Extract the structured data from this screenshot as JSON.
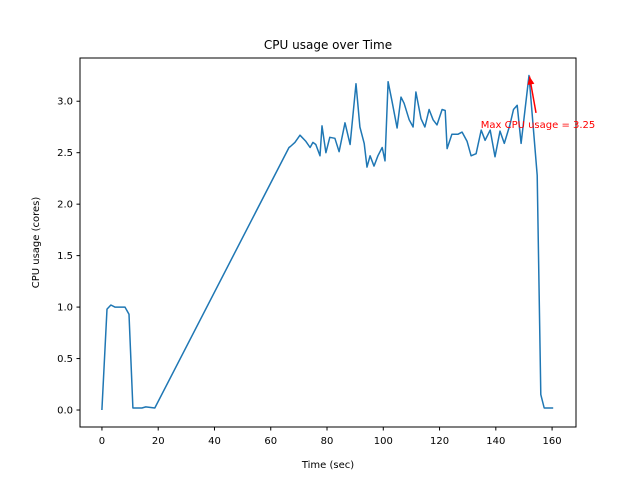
{
  "chart_data": {
    "type": "line",
    "title": "CPU usage over Time",
    "xlabel": "Time (sec)",
    "ylabel": "CPU usage (cores)",
    "xlim": [
      -7.8,
      168.5
    ],
    "ylim": [
      -0.165,
      3.42
    ],
    "xticks": [
      0,
      20,
      40,
      60,
      80,
      100,
      120,
      140,
      160
    ],
    "yticks": [
      0.0,
      0.5,
      1.0,
      1.5,
      2.0,
      2.5,
      3.0
    ],
    "ytick_labels": [
      "0.0",
      "0.5",
      "1.0",
      "1.5",
      "2.0",
      "2.5",
      "3.0"
    ],
    "grid": false,
    "line_color": "#1f77b4",
    "series": [
      {
        "name": "CPU usage",
        "x": [
          0,
          1.8,
          3.2,
          4.6,
          8.2,
          9.6,
          11,
          14.2,
          15.6,
          18.8,
          66.5,
          67,
          68.6,
          70.4,
          72.5,
          74,
          75,
          76,
          77.5,
          78.2,
          79.6,
          81,
          82.8,
          84.3,
          86.4,
          88.2,
          90.3,
          91.7,
          93.2,
          94.2,
          95.3,
          96.7,
          98.1,
          99.6,
          100.6,
          101.7,
          103.1,
          104.9,
          106.3,
          107.4,
          109.2,
          110.6,
          111.6,
          113.4,
          114.8,
          116.3,
          117.7,
          119.1,
          120.9,
          122,
          122.7,
          124.4,
          126.6,
          128,
          129.8,
          131.2,
          133,
          134.8,
          136.2,
          138,
          139.7,
          141.5,
          143,
          145,
          146.3,
          147.6,
          149,
          151.8,
          154.7,
          156,
          157.2,
          160.4
        ],
        "y": [
          0,
          0.98,
          1.02,
          1.0,
          1.0,
          0.93,
          0.02,
          0.02,
          0.03,
          0.02,
          2.55,
          2.56,
          2.6,
          2.67,
          2.61,
          2.55,
          2.6,
          2.58,
          2.47,
          2.76,
          2.5,
          2.65,
          2.64,
          2.51,
          2.79,
          2.58,
          3.17,
          2.75,
          2.59,
          2.36,
          2.47,
          2.37,
          2.47,
          2.55,
          2.42,
          3.19,
          3.0,
          2.74,
          3.04,
          2.98,
          2.82,
          2.75,
          3.09,
          2.83,
          2.75,
          2.92,
          2.82,
          2.77,
          2.92,
          2.91,
          2.54,
          2.68,
          2.68,
          2.7,
          2.61,
          2.47,
          2.49,
          2.72,
          2.62,
          2.72,
          2.46,
          2.71,
          2.59,
          2.77,
          2.92,
          2.96,
          2.59,
          3.25,
          2.28,
          0.15,
          0.02,
          0.02
        ]
      }
    ],
    "annotation": {
      "text": "Max CPU usage = 3.25",
      "xy": [
        151.8,
        3.25
      ],
      "xytext": [
        155,
        2.78
      ],
      "color": "#ff0000"
    }
  }
}
